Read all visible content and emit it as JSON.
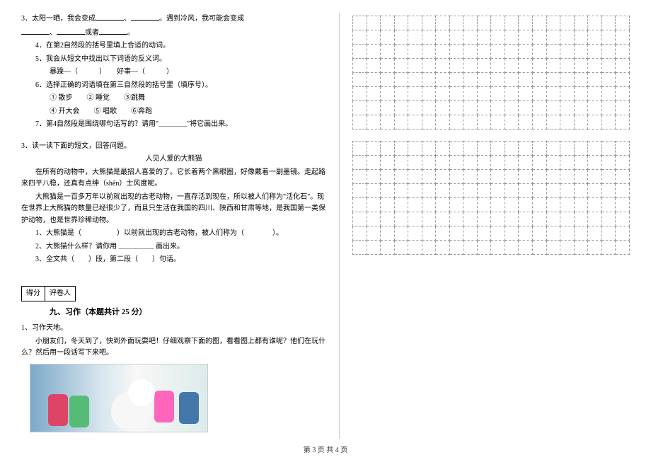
{
  "q3": {
    "prefix": "3．太阳一晒，我会变成",
    "mid": "。遇到冷风，我可能会变成",
    "line2a": "、",
    "line2b": "或者"
  },
  "q4": "4．在第2自然段的括号里填上合适的动词。",
  "q5": {
    "main": "5．我会从短文中找出以下词语的反义词。",
    "items": "暴躁—（　　　）　　好事—（　　　）"
  },
  "q6": {
    "main": "6．选择正确的词语填在第三自然段的括号里（填序号）。",
    "opts1": "① 散步　　② 睡觉　　③跳舞",
    "opts2": "④ 开大会　　⑤ 唱歌　　⑥奔跑"
  },
  "q7": "7．第4自然段是围绕哪句话写的？请用\"＿＿＿＿\"将它画出来。",
  "reading": {
    "intro": "3．读一读下面的短文，回答问题。",
    "title": "人见人爱的大熊猫",
    "p1": "在所有的动物中，大熊猫是最招人喜爱的了。它长着两个黑眼圈，好像戴着一副墨镜。走起路来四平八稳，还真有点绅（shēn）士风度呢。",
    "p2": "大熊猫是一百多万年以前就出现的古老动物，一直存活到现在，所以被人们称为\"活化石\"。现在世界上大熊猫的数量已经很少了，而且只生活在我国的四川、陕西和甘肃等地，是我国第一类保护动物，也是世界珍稀动物。",
    "q1": "1、大熊猫是（　　　　　）以前就出现的古老动物，被人们称为（　　　　）。",
    "q2": "2、大熊猫什么样？请你用 ＿＿＿＿＿ 画出来。",
    "q3": "3、全文共（　　）段，第二段（　　）句话。"
  },
  "score": {
    "a": "得分",
    "b": "评卷人"
  },
  "section9": "九、习作（本题共计 25 分）",
  "writing": {
    "head": "1、习作天地。",
    "body": "小朋友们，冬天到了，快到外面玩耍吧！仔细观察下面的图，看看图上都有谁呢？他们在玩什么？然后用一段话写下来吧。"
  },
  "footer": "第 3 页 共 4 页",
  "grid": {
    "rows": 8,
    "cols": 20,
    "blocks": 2
  }
}
